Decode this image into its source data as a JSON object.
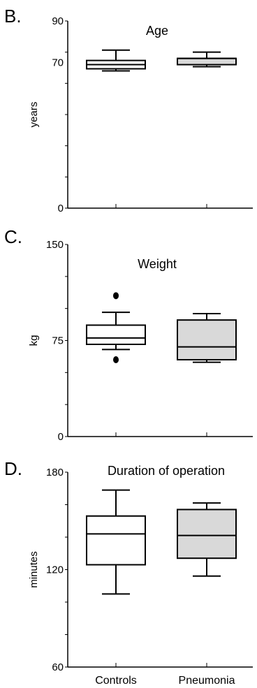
{
  "chart_data": [
    {
      "type": "box",
      "panel": "B.",
      "title": "Age",
      "ylabel": "years",
      "ylim": [
        0,
        90
      ],
      "yticks": [
        {
          "value": 90,
          "label": "90"
        },
        {
          "value": 70,
          "label": "70"
        },
        {
          "value": 0,
          "label": "0"
        }
      ],
      "categories": [
        "Controls",
        "Pneumonia"
      ],
      "show_category_labels": false,
      "boxes": [
        {
          "category": "Controls",
          "fill": "#ffffff",
          "whisker_low": 66,
          "q1": 67,
          "median": 69,
          "q3": 71,
          "whisker_high": 76,
          "outliers": []
        },
        {
          "category": "Pneumonia",
          "fill": "#d9d9d9",
          "whisker_low": 68,
          "q1": 69,
          "median": 72,
          "q3": 72,
          "whisker_high": 75,
          "outliers": []
        }
      ]
    },
    {
      "type": "box",
      "panel": "C.",
      "title": "Weight",
      "ylabel": "kg",
      "ylim": [
        0,
        150
      ],
      "yticks": [
        {
          "value": 150,
          "label": "150"
        },
        {
          "value": 75,
          "label": "75"
        },
        {
          "value": 0,
          "label": "0"
        }
      ],
      "categories": [
        "Controls",
        "Pneumonia"
      ],
      "show_category_labels": false,
      "boxes": [
        {
          "category": "Controls",
          "fill": "#ffffff",
          "whisker_low": 68,
          "q1": 72,
          "median": 77,
          "q3": 87,
          "whisker_high": 97,
          "outliers": [
            60,
            110
          ]
        },
        {
          "category": "Pneumonia",
          "fill": "#d9d9d9",
          "whisker_low": 58,
          "q1": 60,
          "median": 70,
          "q3": 91,
          "whisker_high": 96,
          "outliers": []
        }
      ]
    },
    {
      "type": "box",
      "panel": "D.",
      "title": "Duration of operation",
      "ylabel": "minutes",
      "ylim": [
        60,
        180
      ],
      "yticks": [
        {
          "value": 180,
          "label": "180"
        },
        {
          "value": 120,
          "label": "120"
        },
        {
          "value": 60,
          "label": "60"
        }
      ],
      "categories": [
        "Controls",
        "Pneumonia"
      ],
      "show_category_labels": true,
      "boxes": [
        {
          "category": "Controls",
          "fill": "#ffffff",
          "whisker_low": 105,
          "q1": 123,
          "median": 142,
          "q3": 153,
          "whisker_high": 169,
          "outliers": []
        },
        {
          "category": "Pneumonia",
          "fill": "#d9d9d9",
          "whisker_low": 116,
          "q1": 127,
          "median": 141,
          "q3": 157,
          "whisker_high": 161,
          "outliers": []
        }
      ]
    }
  ]
}
